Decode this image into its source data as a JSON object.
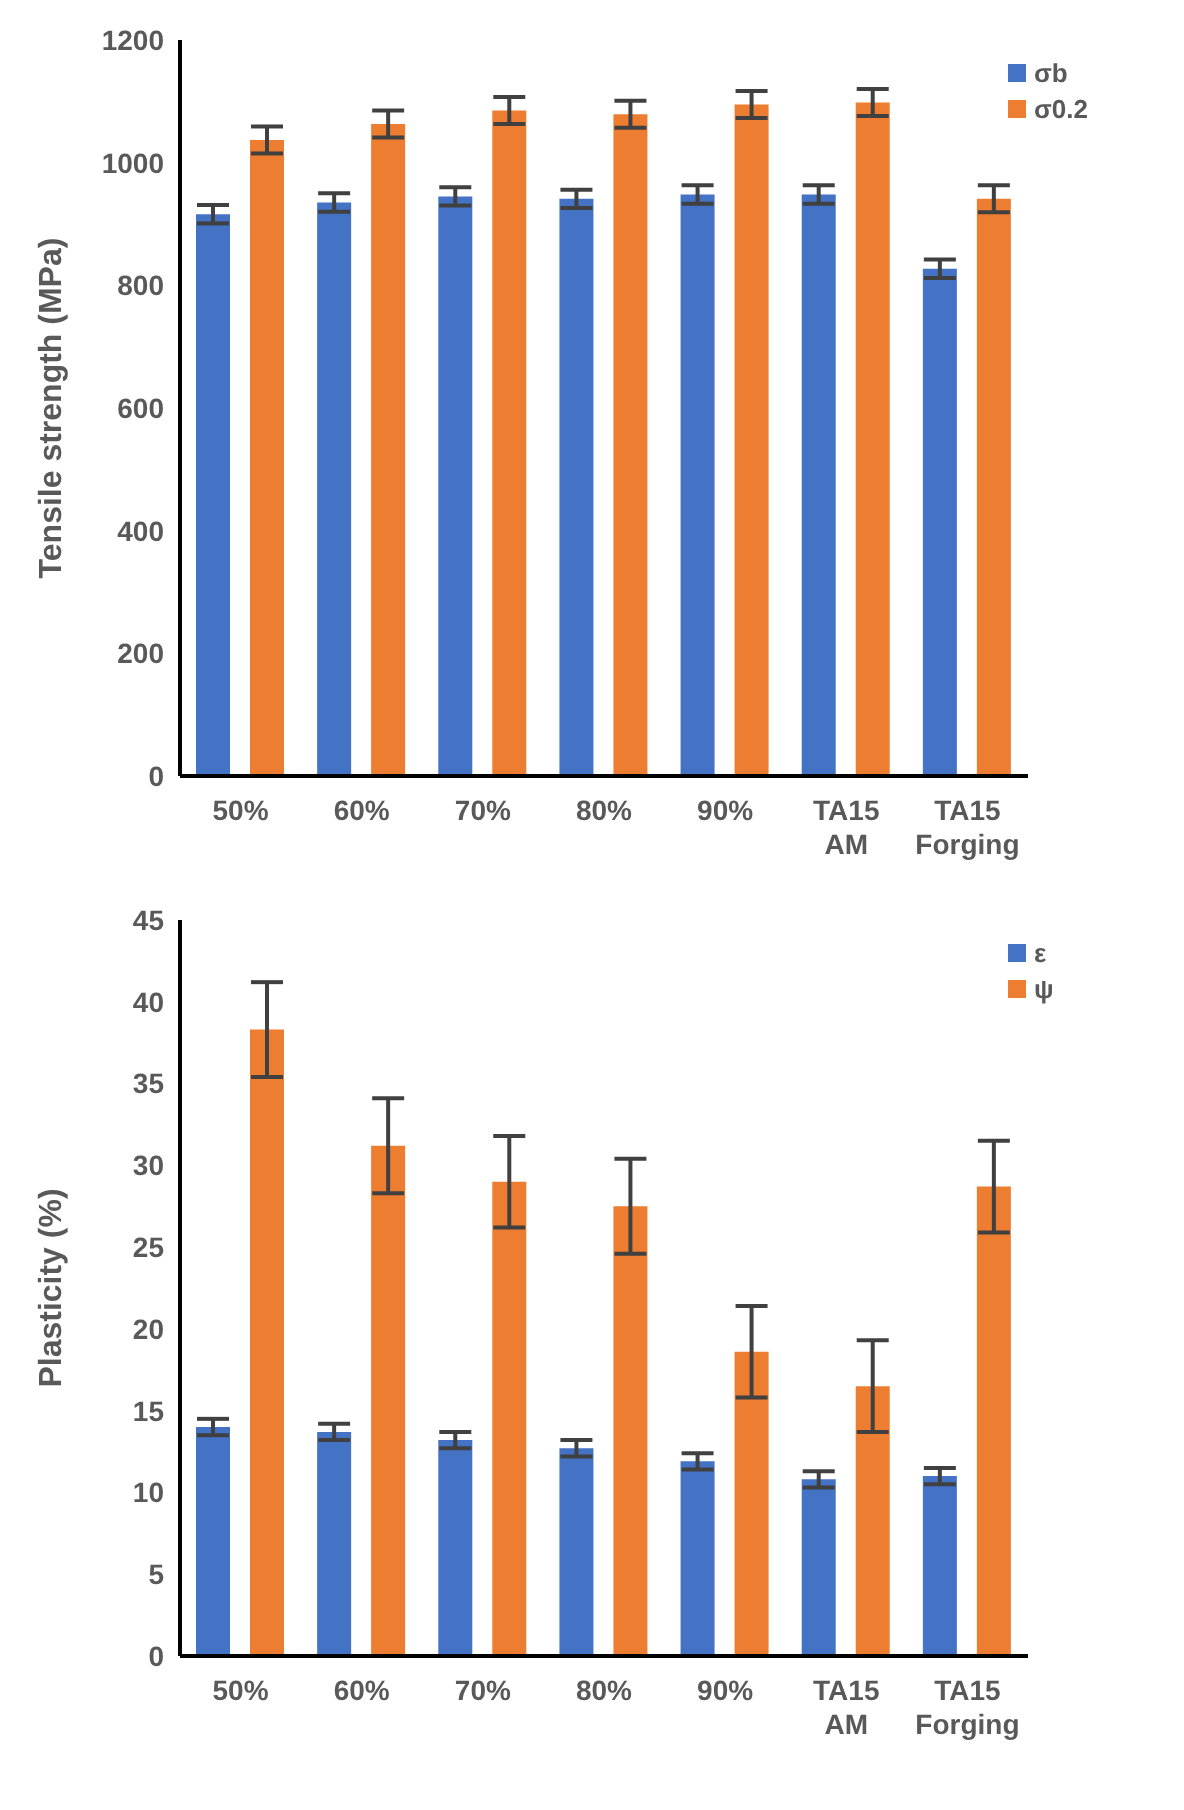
{
  "chart_data": [
    {
      "type": "bar",
      "ylabel": "Tensile strength (MPa)",
      "categories": [
        "50%",
        "60%",
        "70%",
        "80%",
        "90%",
        "TA15 AM",
        "TA15 Forging"
      ],
      "series": [
        {
          "name": "σb",
          "color": "#4472c4",
          "values": [
            916,
            935,
            945,
            941,
            948,
            948,
            827
          ],
          "errors": [
            15,
            15,
            15,
            15,
            15,
            15,
            15
          ]
        },
        {
          "name": "σ0.2",
          "color": "#ed7d31",
          "values": [
            1037,
            1063,
            1085,
            1079,
            1095,
            1098,
            941
          ],
          "errors": [
            22,
            22,
            22,
            22,
            22,
            22,
            22
          ]
        }
      ],
      "ylim": [
        0,
        1200
      ],
      "yticks": [
        0,
        200,
        400,
        600,
        800,
        1000,
        1200
      ],
      "grid": false,
      "legend": "top right"
    },
    {
      "type": "bar",
      "ylabel": "Plasticity (%)",
      "categories": [
        "50%",
        "60%",
        "70%",
        "80%",
        "90%",
        "TA15 AM",
        "TA15 Forging"
      ],
      "series": [
        {
          "name": "ε",
          "color": "#4472c4",
          "values": [
            14,
            13.7,
            13.2,
            12.7,
            11.9,
            10.8,
            11
          ],
          "errors": [
            0.5,
            0.5,
            0.5,
            0.5,
            0.5,
            0.5,
            0.5
          ]
        },
        {
          "name": "ψ",
          "color": "#ed7d31",
          "values": [
            38.3,
            31.2,
            29,
            27.5,
            18.6,
            16.5,
            28.7
          ],
          "errors": [
            2.9,
            2.9,
            2.8,
            2.9,
            2.8,
            2.8,
            2.8
          ]
        }
      ],
      "ylim": [
        0,
        45
      ],
      "yticks": [
        0,
        5,
        10,
        15,
        20,
        25,
        30,
        35,
        40,
        45
      ],
      "grid": false,
      "legend": "top right"
    }
  ]
}
